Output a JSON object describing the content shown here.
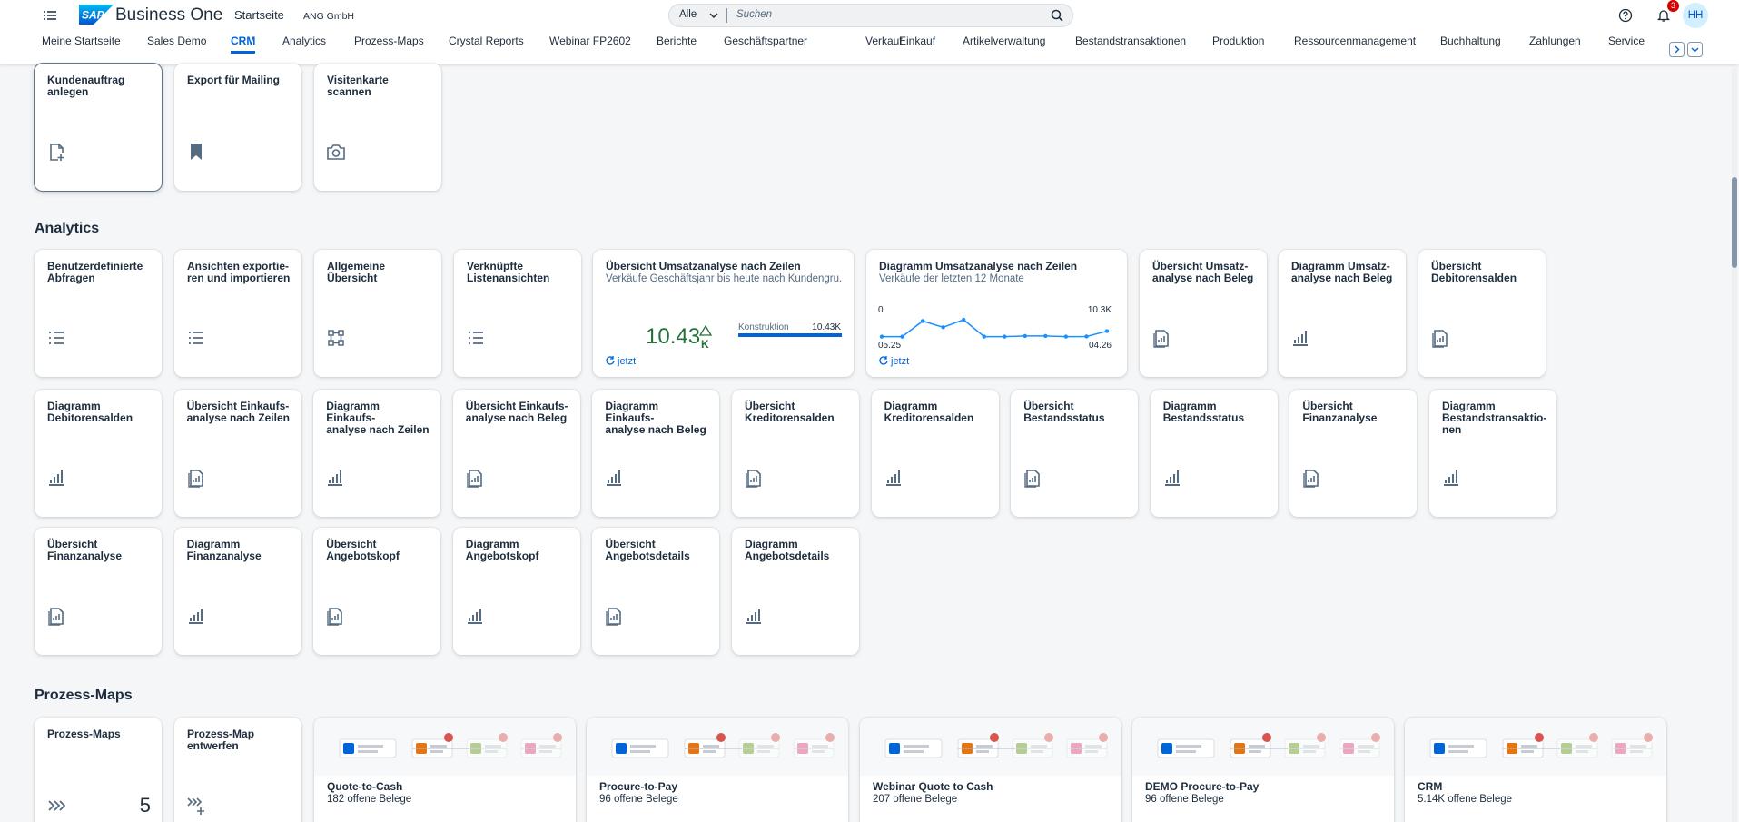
{
  "header": {
    "logo": "SAP",
    "product": "Business One",
    "page_title": "Startseite",
    "company": "ANG GmbH",
    "search": {
      "scope": "Alle",
      "placeholder": "Suchen"
    },
    "notifications": 3,
    "user_initials": "HH"
  },
  "nav": {
    "tabs": [
      "Meine Startseite",
      "Sales Demo",
      "CRM",
      "Analytics",
      "Prozess-Maps",
      "Crystal Reports",
      "Webinar FP2602",
      "Berichte",
      "Geschäftspartner",
      "Verkauf",
      "Einkauf",
      "Artikelverwaltung",
      "Bestandstransaktionen",
      "Produktion",
      "Ressourcenmanagement",
      "Buchhaltung",
      "Zahlungen",
      "Service"
    ],
    "active": "CRM"
  },
  "sections": [
    {
      "tiles": [
        {
          "title": "Kundenauftrag\nanlegen",
          "icon": "doc-add",
          "focused": true
        },
        {
          "title": "Export für Mailing",
          "icon": "bookmark"
        },
        {
          "title": "Visitenkarte scannen",
          "icon": "camera"
        }
      ]
    },
    {
      "heading": "Analytics",
      "tiles": [
        {
          "title": "Benutzerdefinierte\nAbfragen",
          "icon": "list"
        },
        {
          "title": "Ansichten exportie-\nren und importieren",
          "icon": "list"
        },
        {
          "title": "Allgemeine\nÜbersicht",
          "icon": "network"
        },
        {
          "title": "Verknüpfte\nListenansichten",
          "icon": "list"
        },
        {
          "title": "Übersicht Umsatzanalyse nach Zeilen",
          "subtitle": "Verkäufe Geschäftsjahr bis heute nach Kundengru...",
          "kpi": {
            "value": 10.43,
            "scale": "K",
            "trend": "up"
          },
          "bar": {
            "name": "Konstruktion",
            "value": 10.43,
            "value_label": "10.43K"
          },
          "refresh": "jetzt"
        },
        {
          "title": "Diagramm Umsatzanalyse nach Zeilen",
          "subtitle": "Verkäufe der letzten 12 Monate",
          "chart_data": {
            "type": "line",
            "categories": [
              "05.25",
              null,
              null,
              null,
              null,
              null,
              null,
              null,
              null,
              null,
              null,
              "04.26"
            ],
            "values": [
              0.2,
              0.2,
              9.5,
              5.8,
              10.3,
              0.2,
              0.2,
              0.6,
              0.6,
              0.2,
              0.3,
              3.5
            ],
            "ylim": [
              0,
              10.3
            ],
            "yticks": [
              0,
              {
                "value": 10.3,
                "label": "10.3K"
              }
            ],
            "color": "#1b90ff"
          },
          "refresh": "jetzt"
        },
        {
          "title": "Übersicht Umsatz-\nanalyse nach Beleg",
          "icon": "report"
        },
        {
          "title": "Diagramm Umsatz-\nanalyse nach Beleg",
          "icon": "bars"
        },
        {
          "title": "Übersicht\nDebitorensalden",
          "icon": "report"
        },
        {
          "title": "Diagramm\nDebitorensalden",
          "icon": "bars"
        },
        {
          "title": "Übersicht Einkaufs-\nanalyse nach Zeilen",
          "icon": "report"
        },
        {
          "title": "Diagramm Einkaufs-\nanalyse nach Zeilen",
          "icon": "bars"
        },
        {
          "title": "Übersicht Einkaufs-\nanalyse nach Beleg",
          "icon": "report"
        },
        {
          "title": "Diagramm Einkaufs-\nanalyse nach Beleg",
          "icon": "bars"
        },
        {
          "title": "Übersicht\nKreditorensalden",
          "icon": "report"
        },
        {
          "title": "Diagramm\nKreditorensalden",
          "icon": "bars"
        },
        {
          "title": "Übersicht\nBestandsstatus",
          "icon": "report"
        },
        {
          "title": "Diagramm\nBestandsstatus",
          "icon": "bars"
        },
        {
          "title": "Übersicht\nFinanzanalyse",
          "icon": "report"
        },
        {
          "title": "Diagramm\nBestandstransaktio-\nnen",
          "icon": "bars"
        },
        {
          "title": "Übersicht\nFinanzanalyse",
          "icon": "report"
        },
        {
          "title": "Diagramm\nFinanzanalyse",
          "icon": "bars"
        },
        {
          "title": "Übersicht\nAngebotskopf",
          "icon": "report"
        },
        {
          "title": "Diagramm\nAngebotskopf",
          "icon": "bars"
        },
        {
          "title": "Übersicht\nAngebotsdetails",
          "icon": "report"
        },
        {
          "title": "Diagramm\nAngebotsdetails",
          "icon": "bars"
        }
      ]
    },
    {
      "heading": "Prozess-Maps",
      "tiles": [
        {
          "title": "Prozess-Maps",
          "icon": "process",
          "count": 5
        },
        {
          "title": "Prozess-Map\nentwerfen",
          "icon": "process-add"
        },
        {
          "title": "Quote-to-Cash",
          "subtitle": "182 offene Belege",
          "preview": true
        },
        {
          "title": "Procure-to-Pay",
          "subtitle": "96 offene Belege",
          "preview": true
        },
        {
          "title": "Webinar Quote to Cash",
          "subtitle": "207 offene Belege",
          "preview": true
        },
        {
          "title": "DEMO Procure-to-Pay",
          "subtitle": "96 offene Belege",
          "preview": true
        },
        {
          "title": "CRM",
          "subtitle": "5.14K offene Belege",
          "preview": true
        }
      ]
    }
  ]
}
